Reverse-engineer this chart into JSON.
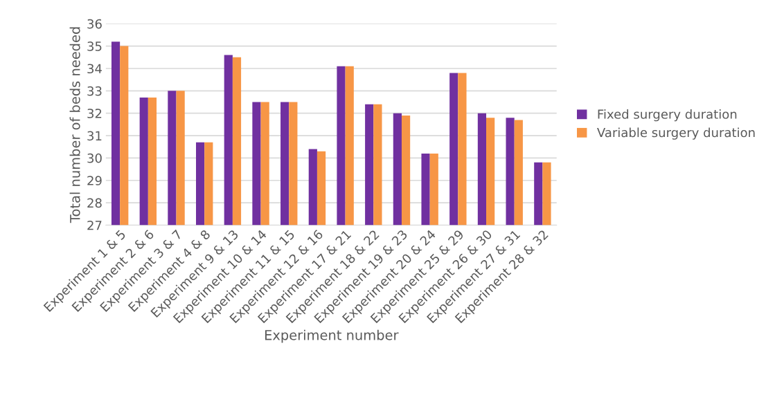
{
  "chart_data": {
    "type": "bar",
    "xlabel": "Experiment number",
    "ylabel": "Total number of beds needed",
    "categories": [
      "Experiment 1 & 5",
      "Experiment 2 & 6",
      "Experiment 3 & 7",
      "Experiment 4 & 8",
      "Experiment 9 & 13",
      "Experiment 10 & 14",
      "Experiment 11 & 15",
      "Experiment 12 & 16",
      "Experiment 17 & 21",
      "Experiment 18 & 22",
      "Experiment 19 & 23",
      "Experiment 20 & 24",
      "Experiment 25 & 29",
      "Experiment 26 & 30",
      "Experiment 27 & 31",
      "Experiment 28 & 32"
    ],
    "series": [
      {
        "name": "Fixed surgery duration",
        "color": "#7030a0",
        "values": [
          35.2,
          32.7,
          33.0,
          30.7,
          34.6,
          32.5,
          32.5,
          30.4,
          34.1,
          32.4,
          32.0,
          30.2,
          33.8,
          32.0,
          31.8,
          29.8
        ]
      },
      {
        "name": "Variable surgery duration",
        "color": "#f79646",
        "values": [
          35.0,
          32.7,
          33.0,
          30.7,
          34.5,
          32.5,
          32.5,
          30.3,
          34.1,
          32.4,
          31.9,
          30.2,
          33.8,
          31.8,
          31.7,
          29.8
        ]
      }
    ],
    "ylim": [
      27,
      36
    ],
    "yticks": [
      27,
      28,
      29,
      30,
      31,
      32,
      33,
      34,
      35,
      36
    ],
    "grid": "y",
    "legend": "right"
  }
}
